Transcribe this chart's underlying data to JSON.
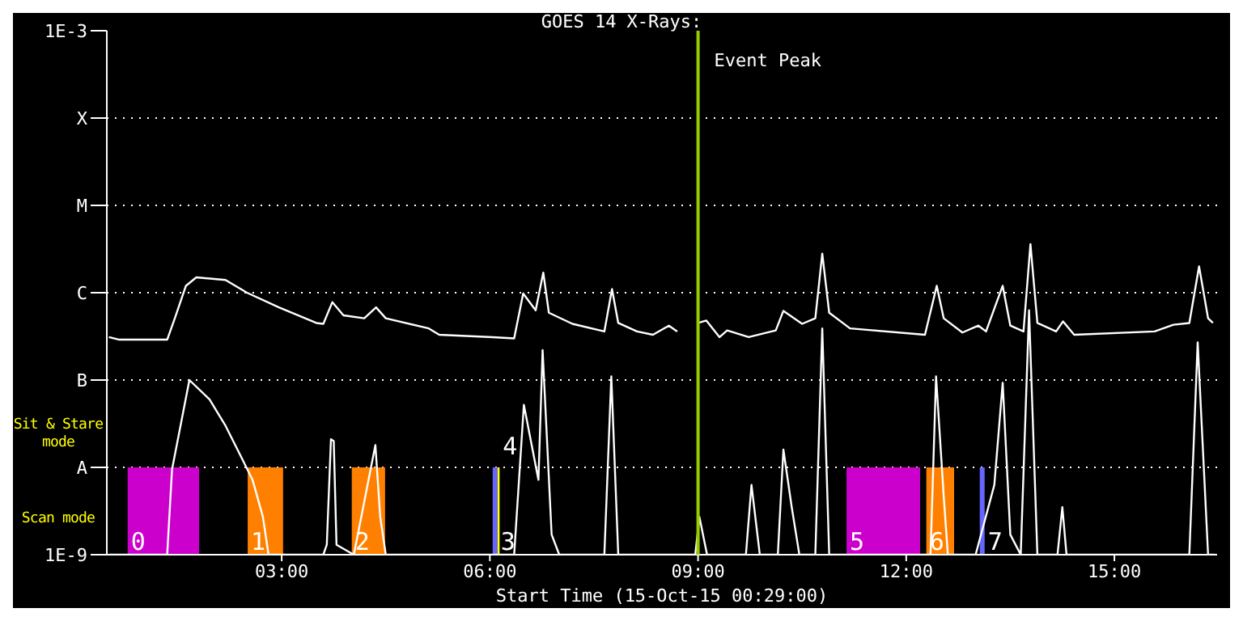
{
  "chart_data": {
    "type": "line",
    "title": "GOES 14 X-Rays:",
    "xlabel": "Start Time (15-Oct-15 00:29:00)",
    "log": "y",
    "grid": "y",
    "marker": "none",
    "line_style": "solid",
    "xlim": [
      0.48,
      16.48
    ],
    "xticks": [
      {
        "value": 3,
        "label": "03:00"
      },
      {
        "value": 6,
        "label": "06:00"
      },
      {
        "value": 9,
        "label": "09:00"
      },
      {
        "value": 12,
        "label": "12:00"
      },
      {
        "value": 15,
        "label": "15:00"
      }
    ],
    "ylim": [
      1e-09,
      0.001
    ],
    "yticks": [
      {
        "value": 1e-09,
        "label": "1E-9"
      },
      {
        "value": 1e-08,
        "label": "A"
      },
      {
        "value": 1e-07,
        "label": "B"
      },
      {
        "value": 1e-06,
        "label": "C"
      },
      {
        "value": 1e-05,
        "label": "M"
      },
      {
        "value": 0.0001,
        "label": "X"
      },
      {
        "value": 0.001,
        "label": "1E-3"
      }
    ],
    "series": [
      {
        "color": "#ffffff",
        "x": [
          0.51,
          0.66,
          1.35,
          1.46,
          1.62,
          1.77,
          2.19,
          2.5,
          2.96,
          3.5,
          3.6,
          3.73,
          3.89,
          4.19,
          4.36,
          4.5,
          5.12,
          5.27,
          6.04,
          6.35,
          6.48,
          6.66,
          6.77,
          6.85,
          7.19,
          7.65,
          7.76,
          7.85,
          8.12,
          8.35,
          8.58,
          8.7,
          8.85,
          9.0,
          9.12,
          9.31,
          9.42,
          9.73,
          10.12,
          10.23,
          10.5,
          10.69,
          10.79,
          10.89,
          11.19,
          12.27,
          12.44,
          12.54,
          12.81,
          13.04,
          13.15,
          13.39,
          13.5,
          13.69,
          13.79,
          13.89,
          14.16,
          14.26,
          14.42,
          15.58,
          15.85,
          16.08,
          16.22,
          16.35,
          16.42
        ],
        "values": [
          3.1e-07,
          2.9e-07,
          2.9e-07,
          5.1e-07,
          1.2e-06,
          1.5e-06,
          1.4e-06,
          1e-06,
          6.8e-07,
          4.5e-07,
          4.4e-07,
          7.8e-07,
          5.5e-07,
          5.1e-07,
          6.8e-07,
          5.1e-07,
          3.9e-07,
          3.3e-07,
          3.1e-07,
          3e-07,
          9.8e-07,
          6.3e-07,
          1.7e-06,
          5.9e-07,
          4.4e-07,
          3.6e-07,
          1.1e-06,
          4.5e-07,
          3.6e-07,
          3.3e-07,
          4.2e-07,
          3.6e-07,
          null,
          4.5e-07,
          4.8e-07,
          3.1e-07,
          3.7e-07,
          3.1e-07,
          3.7e-07,
          6.2e-07,
          4.4e-07,
          5.1e-07,
          2.8e-06,
          5.9e-07,
          3.9e-07,
          3.3e-07,
          1.2e-06,
          5.1e-07,
          3.5e-07,
          4.2e-07,
          3.6e-07,
          1.2e-06,
          4.2e-07,
          3.6e-07,
          3.6e-06,
          4.5e-07,
          3.6e-07,
          4.7e-07,
          3.3e-07,
          3.6e-07,
          4.3e-07,
          4.5e-07,
          2e-06,
          5.1e-07,
          4.5e-07
        ]
      },
      {
        "color": "#ffffff",
        "x": [
          0.51,
          1.35,
          1.42,
          1.67,
          1.96,
          2.19,
          2.42,
          2.58,
          2.73,
          2.81,
          3.6,
          3.65,
          3.71,
          3.75,
          3.79,
          4.04,
          4.35,
          4.42,
          4.5,
          6.35,
          6.49,
          6.7,
          6.76,
          6.89,
          7.0,
          7.65,
          7.75,
          7.85,
          8.96,
          9.02,
          9.13,
          9.69,
          9.77,
          9.89,
          10.15,
          10.23,
          10.35,
          10.46,
          10.69,
          10.79,
          10.89,
          12.35,
          12.43,
          12.54,
          12.6,
          13.0,
          13.27,
          13.39,
          13.5,
          13.65,
          13.77,
          13.89,
          14.18,
          14.25,
          14.31,
          16.08,
          16.2,
          16.35,
          16.45
        ],
        "values": [
          1e-09,
          1e-09,
          9.5e-09,
          1e-07,
          6e-08,
          3e-08,
          1.3e-08,
          7.2e-09,
          2.7e-09,
          1e-09,
          1e-09,
          1.3e-09,
          2.1e-08,
          2e-08,
          1.3e-09,
          1e-09,
          1.8e-08,
          2.7e-09,
          1e-09,
          1e-09,
          5.2e-08,
          7.2e-09,
          2.2e-07,
          1.7e-09,
          1e-09,
          1e-09,
          1.1e-07,
          1e-09,
          1e-09,
          2.7e-09,
          1e-09,
          1e-09,
          6.3e-09,
          1e-09,
          1e-09,
          1.6e-08,
          3.5e-09,
          1e-09,
          1e-09,
          3.9e-07,
          1e-09,
          1e-09,
          1.1e-07,
          4.7e-09,
          1e-09,
          1e-09,
          6.3e-09,
          9.3e-08,
          1.7e-09,
          1e-09,
          6.3e-07,
          1e-09,
          1e-09,
          3.5e-09,
          1e-09,
          1e-09,
          2.7e-07,
          1e-09,
          1e-09
        ]
      }
    ],
    "bands": [
      {
        "axis": "x",
        "from": 0.78,
        "to": 1.81,
        "label": "0",
        "color": "#cc00cc"
      },
      {
        "axis": "x",
        "from": 2.51,
        "to": 3.02,
        "label": "1",
        "color": "#ff8000"
      },
      {
        "axis": "x",
        "from": 4.01,
        "to": 4.49,
        "label": "2",
        "color": "#ff8000"
      },
      {
        "axis": "x",
        "from": 6.04,
        "to": 6.11,
        "label": "3",
        "color": "#6666ff"
      },
      {
        "axis": "x",
        "from": 6.11,
        "to": 6.14,
        "label": "4",
        "color": "#ffff00"
      },
      {
        "axis": "x",
        "from": 11.14,
        "to": 12.2,
        "label": "5",
        "color": "#cc00cc"
      },
      {
        "axis": "x",
        "from": 12.29,
        "to": 12.69,
        "label": "6",
        "color": "#ff8000"
      },
      {
        "axis": "x",
        "from": 13.06,
        "to": 13.13,
        "label": "7",
        "color": "#6666ff"
      }
    ],
    "ref_lines": [
      {
        "axis": "x",
        "value": 9.0,
        "label": "Event Peak",
        "color": "#99cc00"
      }
    ],
    "annotations": [
      "Sit & Stare mode",
      "Scan mode"
    ]
  }
}
